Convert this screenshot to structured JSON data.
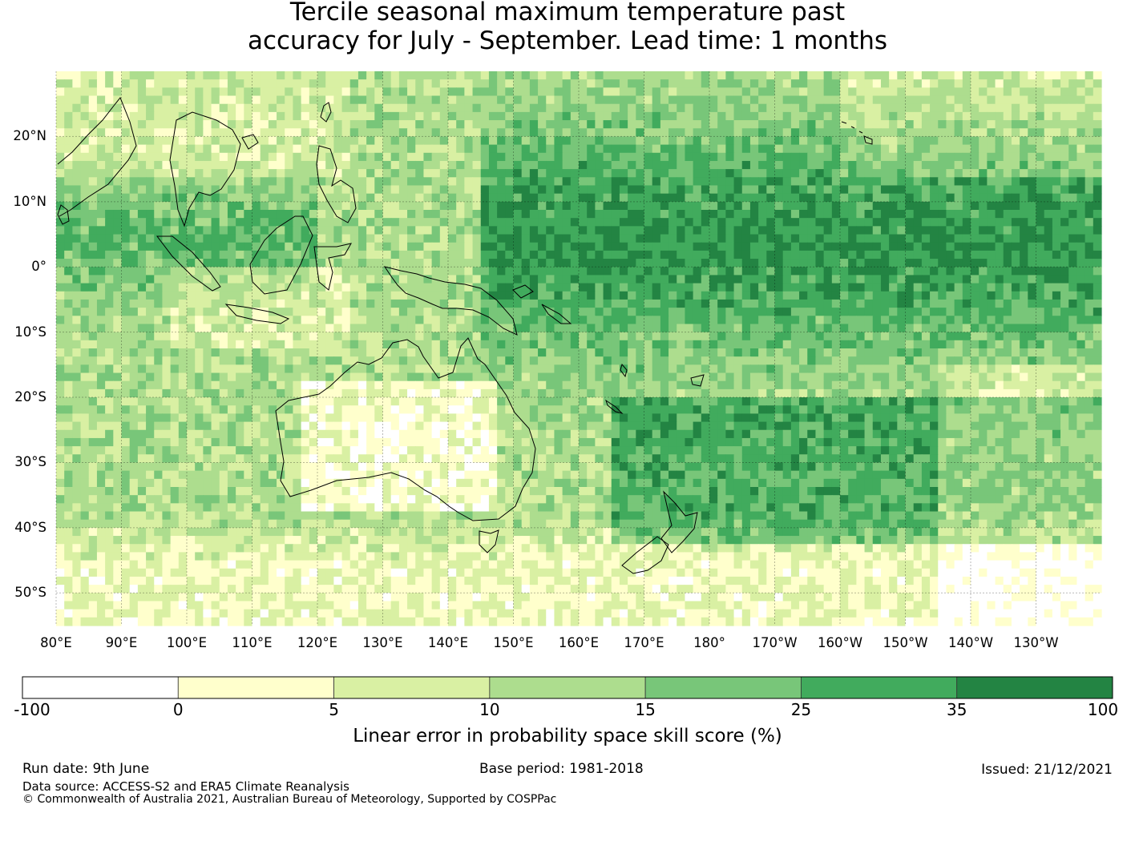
{
  "title_line1": "Tercile seasonal maximum temperature past",
  "title_line2": "accuracy for July - September. Lead time: 1 months",
  "map": {
    "lat_range": [
      -55,
      30
    ],
    "lon_range": [
      80,
      240
    ],
    "lat_ticks": [
      "20°N",
      "10°N",
      "0°",
      "10°S",
      "20°S",
      "30°S",
      "40°S",
      "50°S"
    ],
    "lat_tick_values": [
      20,
      10,
      0,
      -10,
      -20,
      -30,
      -40,
      -50
    ],
    "lon_ticks": [
      "80°E",
      "90°E",
      "100°E",
      "110°E",
      "120°E",
      "130°E",
      "140°E",
      "150°E",
      "160°E",
      "170°E",
      "180°",
      "170°W",
      "160°W",
      "150°W",
      "140°W",
      "130°W"
    ],
    "lon_tick_values": [
      80,
      90,
      100,
      110,
      120,
      130,
      140,
      150,
      160,
      170,
      180,
      190,
      200,
      210,
      220,
      230
    ]
  },
  "colorbar": {
    "ticks": [
      "-100",
      "0",
      "5",
      "10",
      "15",
      "25",
      "35",
      "100"
    ],
    "colors": [
      "#ffffff",
      "#ffffcc",
      "#d9f0a3",
      "#addd8e",
      "#78c679",
      "#41ab5d",
      "#238443"
    ],
    "label": "Linear error in probability space skill score (%)"
  },
  "footer": {
    "run_date": "Run date: 9th June",
    "base_period": "Base period: 1981-2018",
    "issued": "Issued: 21/12/2021",
    "data_source": "Data source: ACCESS-S2 and ERA5 Climate Reanalysis",
    "copyright": "© Commonwealth of Australia 2021, Australian Bureau of Meteorology, Supported by COSPPac"
  }
}
